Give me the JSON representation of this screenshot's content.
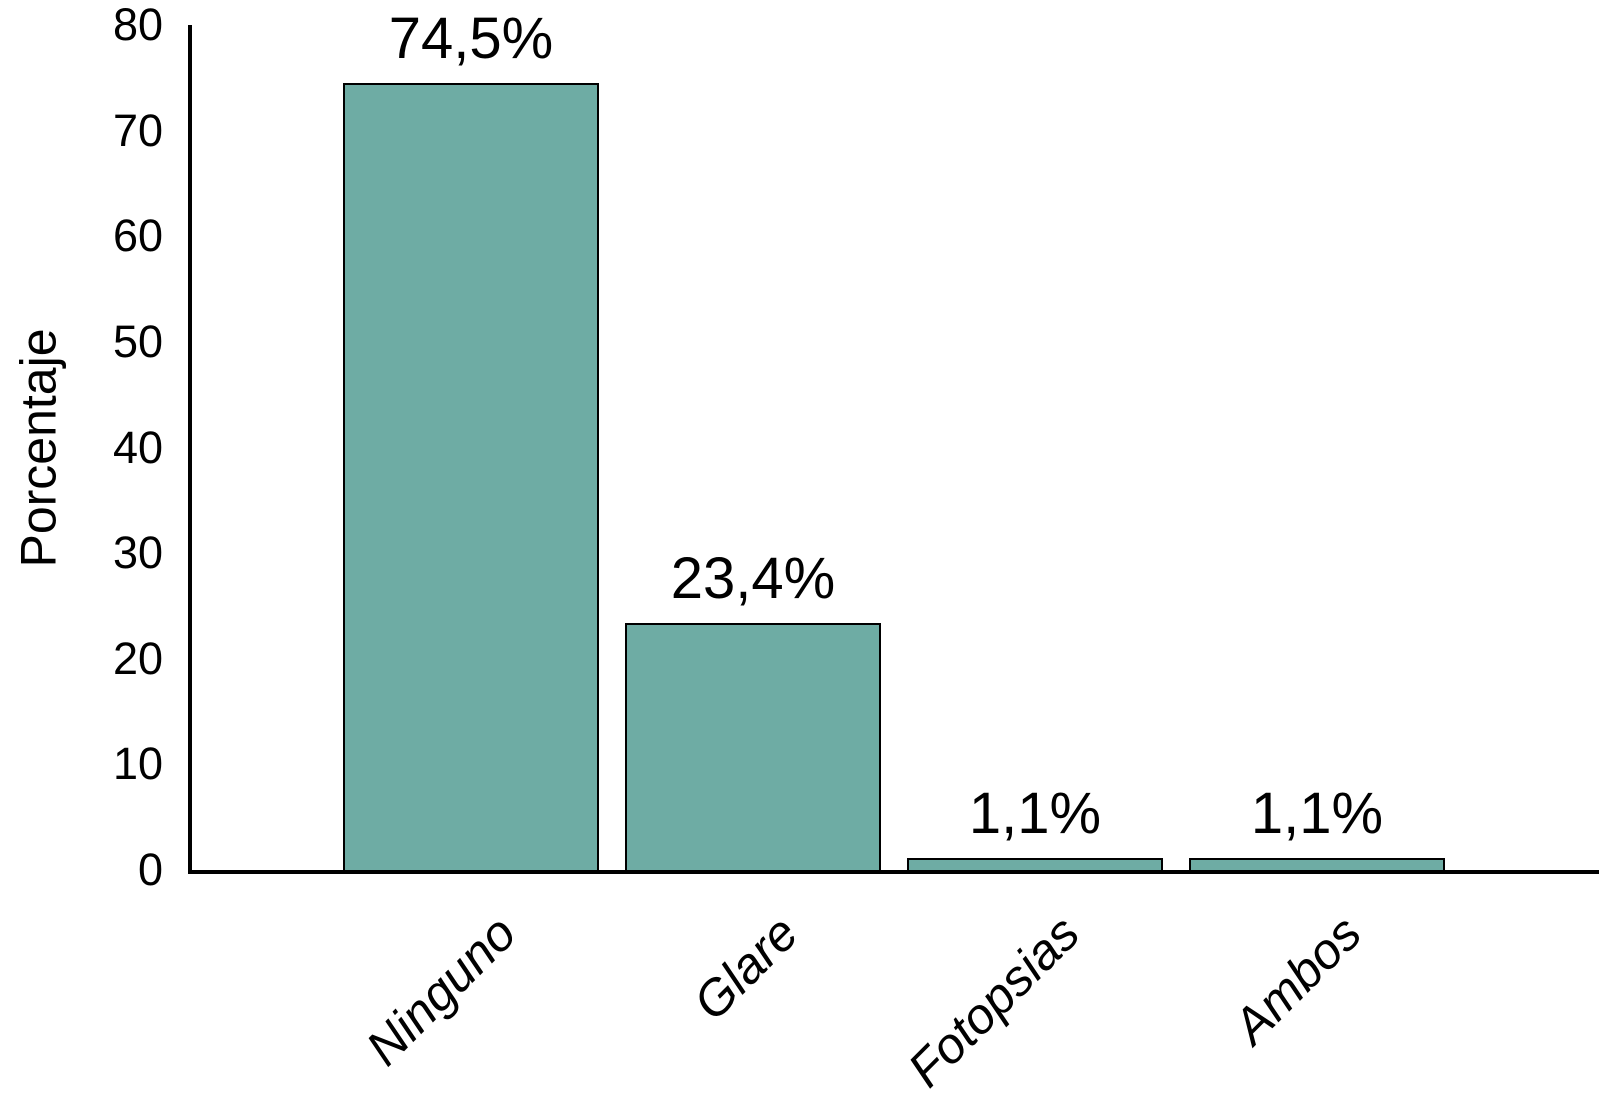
{
  "chart_data": {
    "type": "bar",
    "title": "",
    "categories": [
      "Ninguno",
      "Glare",
      "Fotopsias",
      "Ambos"
    ],
    "values": [
      74.5,
      23.4,
      1.1,
      1.1
    ],
    "bar_labels": [
      "74,5%",
      "23,4%",
      "1,1%",
      "1,1%"
    ],
    "xlabel": "",
    "ylabel": "Porcentaje",
    "ylim": [
      0,
      80
    ],
    "yticks": [
      0,
      10,
      20,
      30,
      40,
      50,
      60,
      70,
      80
    ],
    "grid": false,
    "legend": null,
    "bar_color": "#6EACA4",
    "bar_border_color": "#000000",
    "axis_color": "#000000",
    "text_color": "#000000",
    "background_color": "#FFFFFF",
    "category_label_style": "italic, rotated 45 degrees",
    "decimal_separator": ","
  }
}
